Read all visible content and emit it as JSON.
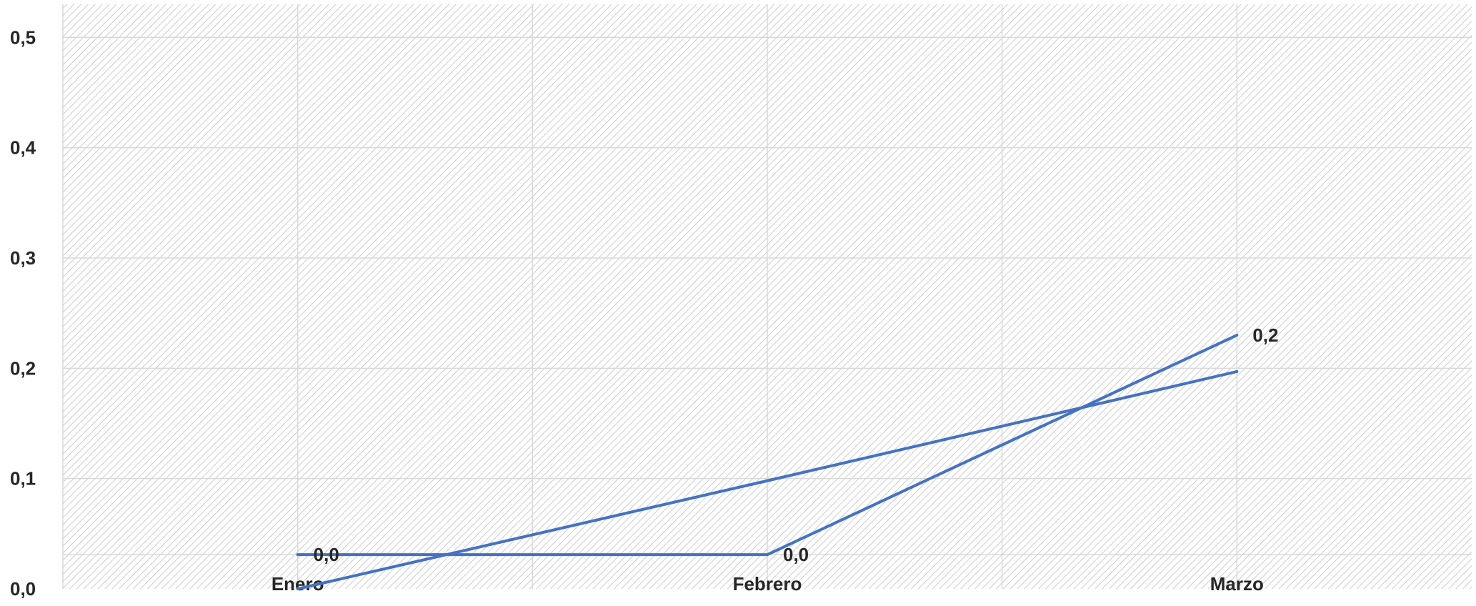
{
  "chart_data": {
    "type": "line",
    "title": "",
    "xlabel": "",
    "ylabel": "",
    "categories": [
      "Enero",
      "Febrero",
      "Marzo"
    ],
    "y_ticks": [
      "0,0",
      "0,1",
      "0,2",
      "0,3",
      "0,4",
      "0,5"
    ],
    "ylim": [
      0,
      0.53
    ],
    "grid": true,
    "legend": "none",
    "colors": {
      "series": "#4472C4",
      "grid": "#d9d9d9",
      "hatch": "#cfcfcf",
      "text": "#262626"
    },
    "series": [
      {
        "values": [
          0.031,
          0.031,
          0.23
        ],
        "labels": [
          "0,0",
          "0,0",
          "0,2"
        ]
      },
      {
        "values": [
          0.0,
          0.098,
          0.197
        ]
      }
    ]
  }
}
